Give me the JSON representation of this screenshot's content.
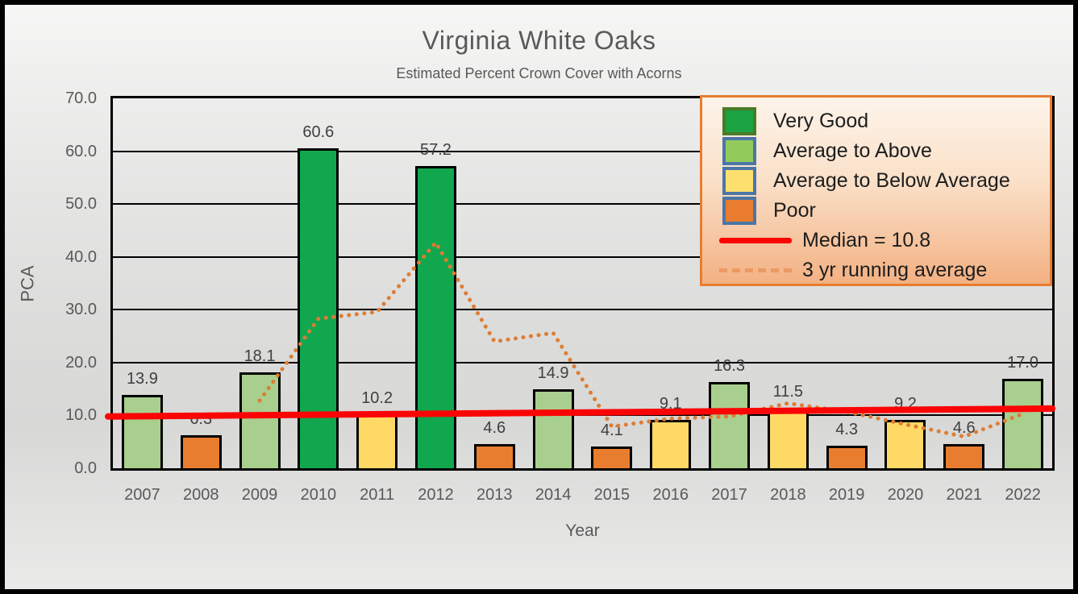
{
  "chart_data": {
    "type": "bar",
    "title": "Virginia White Oaks",
    "subtitle": "Estimated Percent Crown Cover with Acorns",
    "xlabel": "Year",
    "ylabel": "PCA",
    "ylim": [
      0,
      70
    ],
    "ytick_step": 10,
    "ytick_labels": [
      "70.0",
      "60.0",
      "50.0",
      "40.0",
      "30.0",
      "20.0",
      "10.0",
      "0.0"
    ],
    "grid": true,
    "legend_position": "top-right",
    "categories": [
      "2007",
      "2008",
      "2009",
      "2010",
      "2011",
      "2012",
      "2013",
      "2014",
      "2015",
      "2016",
      "2017",
      "2018",
      "2019",
      "2020",
      "2021",
      "2022"
    ],
    "values": [
      13.9,
      6.3,
      18.1,
      60.6,
      10.2,
      57.2,
      4.6,
      14.9,
      4.1,
      9.1,
      16.3,
      11.5,
      4.3,
      9.2,
      4.6,
      17.0
    ],
    "bar_labels": [
      "13.9",
      "6.3",
      "18.1",
      "60.6",
      "10.2",
      "57.2",
      "4.6",
      "14.9",
      "4.1",
      "9.1",
      "16.3",
      "11.5",
      "4.3",
      "9.2",
      "4.6",
      "17.0"
    ],
    "bar_ratings": [
      "average_to_above",
      "poor",
      "average_to_above",
      "very_good",
      "average_to_below",
      "very_good",
      "poor",
      "average_to_above",
      "poor",
      "average_to_below",
      "average_to_above",
      "average_to_below",
      "poor",
      "average_to_below",
      "poor",
      "average_to_above"
    ],
    "rating_colors": {
      "very_good": "#11A74F",
      "average_to_above": "#A9CF8E",
      "average_to_below": "#FFD966",
      "poor": "#E97D2F"
    },
    "median_line": {
      "label": "Median = 10.8",
      "value": 10.8,
      "color": "#FA0505",
      "y_start": 9.8,
      "y_end": 11.3
    },
    "running_average": {
      "label": "3 yr running average",
      "color": "#DD7D35",
      "x": [
        "2009",
        "2010",
        "2011",
        "2012",
        "2013",
        "2014",
        "2015",
        "2016",
        "2017",
        "2018",
        "2019",
        "2020",
        "2021",
        "2022"
      ],
      "values": [
        12.8,
        28.3,
        29.6,
        42.7,
        24.0,
        25.6,
        7.9,
        9.4,
        9.8,
        12.3,
        10.7,
        8.3,
        6.0,
        10.3
      ]
    },
    "legend": [
      {
        "swatch": "box",
        "label": "Very Good",
        "fill": "#1CA342",
        "border": "#4A7A28"
      },
      {
        "swatch": "box",
        "label": "Average to Above",
        "fill": "#92CB5C",
        "border": "#4A76A8"
      },
      {
        "swatch": "box",
        "label": "Average to Below Average",
        "fill": "#FCDF6E",
        "border": "#4A76A8"
      },
      {
        "swatch": "box",
        "label": "Poor",
        "fill": "#E97C2E",
        "border": "#4A76A8"
      },
      {
        "swatch": "line",
        "label": "Median = 10.8",
        "color": "#FA0505"
      },
      {
        "swatch": "dashed-line",
        "label": "3 yr running average",
        "color": "#EC9A62"
      }
    ]
  }
}
